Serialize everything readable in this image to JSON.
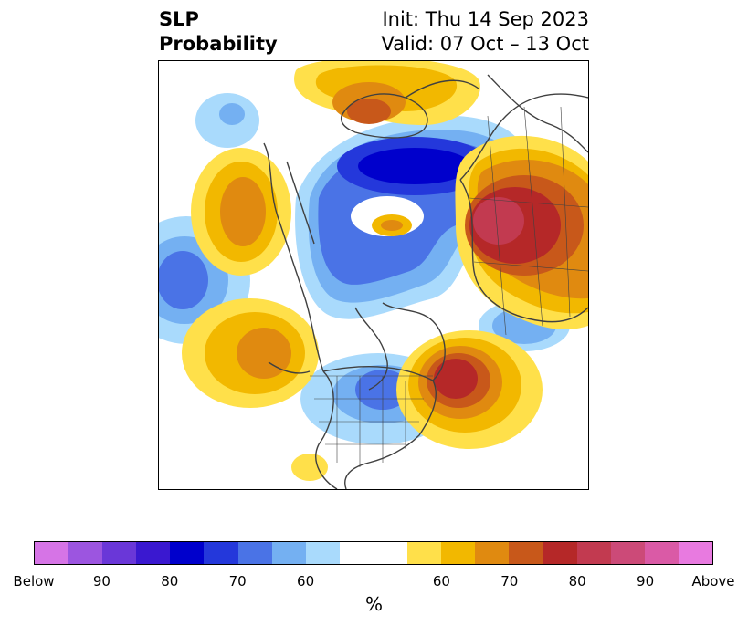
{
  "title": {
    "left_line1": "SLP",
    "left_line2": "Probability",
    "right_line1": "Init: Thu 14 Sep 2023",
    "right_line2": "Valid: 07 Oct – 13 Oct"
  },
  "colorbar": {
    "colors": [
      "#d674e6",
      "#9c55e0",
      "#6a37d8",
      "#3a18d0",
      "#0000cc",
      "#2438db",
      "#4a73e6",
      "#74b0f2",
      "#a9dafc",
      "#ffffff",
      "#ffffff",
      "#ffe04a",
      "#f2b800",
      "#e08a10",
      "#c8581a",
      "#b52828",
      "#c23a50",
      "#cc4a78",
      "#da5aa6",
      "#e87ae0"
    ],
    "tick_labels": [
      "Below",
      "90",
      "80",
      "70",
      "60",
      "60",
      "70",
      "80",
      "90",
      "Above"
    ],
    "unit": "%"
  }
}
